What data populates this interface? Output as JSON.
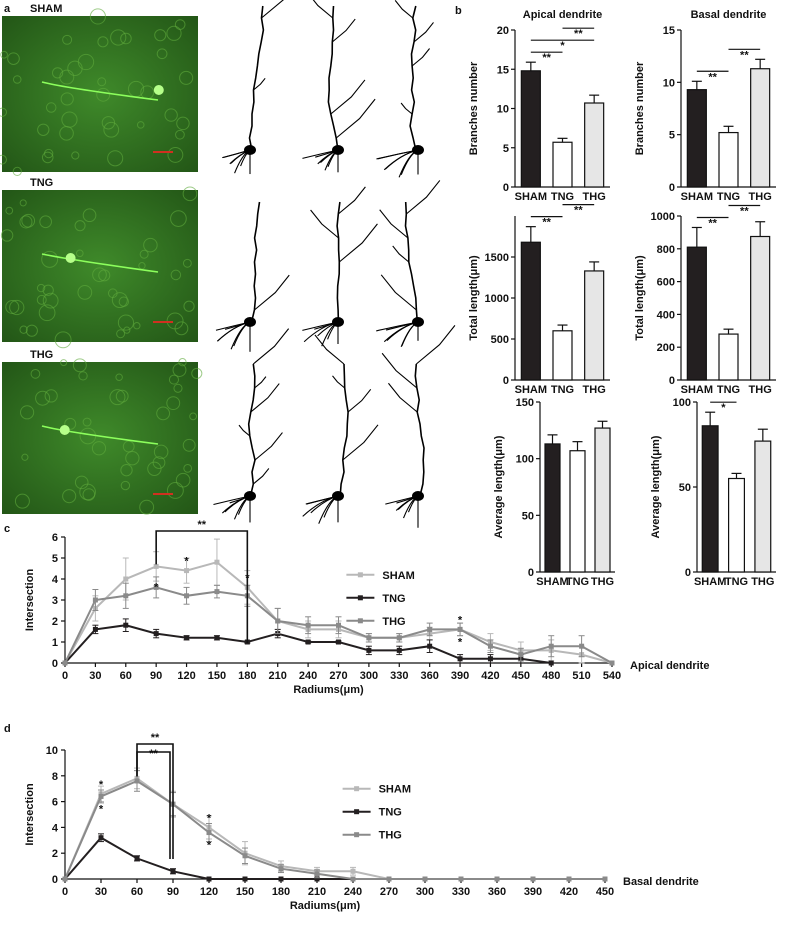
{
  "panels": [
    "a",
    "b",
    "c",
    "d"
  ],
  "images": [
    {
      "label": "SHAM"
    },
    {
      "label": "TNG"
    },
    {
      "label": "THG"
    }
  ],
  "chart_data": [
    {
      "type": "bar",
      "title": "Apical dendrite",
      "y_label": "Branches number",
      "categories": [
        "SHAM",
        "TNG",
        "THG"
      ],
      "values": [
        14.8,
        5.7,
        10.7
      ],
      "errors": [
        1.1,
        0.5,
        1.0
      ],
      "colors": [
        "#231f20",
        "#ffffff",
        "#e6e6e6"
      ],
      "ylim": [
        0,
        20
      ],
      "yticks": [
        0,
        5,
        10,
        15,
        20
      ],
      "annotations": [
        {
          "text": "**",
          "between": [
            "SHAM",
            "TNG"
          ]
        },
        {
          "text": "*",
          "between": [
            "SHAM",
            "THG"
          ]
        },
        {
          "text": "**",
          "between": [
            "TNG",
            "THG"
          ]
        }
      ]
    },
    {
      "type": "bar",
      "title": "Basal dendrite",
      "y_label": "Branches number",
      "categories": [
        "SHAM",
        "TNG",
        "THG"
      ],
      "values": [
        9.3,
        5.2,
        11.3
      ],
      "errors": [
        0.8,
        0.6,
        0.9
      ],
      "colors": [
        "#231f20",
        "#ffffff",
        "#e6e6e6"
      ],
      "ylim": [
        0,
        15
      ],
      "yticks": [
        0,
        5,
        10,
        15
      ],
      "annotations": [
        {
          "text": "**",
          "between": [
            "SHAM",
            "TNG"
          ]
        },
        {
          "text": "**",
          "between": [
            "TNG",
            "THG"
          ]
        }
      ]
    },
    {
      "type": "bar",
      "y_label": "Total length(μm)",
      "categories": [
        "SHAM",
        "TNG",
        "THG"
      ],
      "values": [
        1680,
        600,
        1330
      ],
      "errors": [
        190,
        70,
        110
      ],
      "colors": [
        "#231f20",
        "#ffffff",
        "#e6e6e6"
      ],
      "ylim": [
        0,
        2000
      ],
      "yticks": [
        0,
        500,
        1000,
        1500
      ],
      "annotations": [
        {
          "text": "**",
          "between": [
            "SHAM",
            "TNG"
          ]
        },
        {
          "text": "**",
          "between": [
            "TNG",
            "THG"
          ]
        }
      ]
    },
    {
      "type": "bar",
      "y_label": "Total length(μm)",
      "categories": [
        "SHAM",
        "TNG",
        "THG"
      ],
      "values": [
        810,
        280,
        875
      ],
      "errors": [
        120,
        30,
        90
      ],
      "colors": [
        "#231f20",
        "#ffffff",
        "#e6e6e6"
      ],
      "ylim": [
        0,
        1000
      ],
      "yticks": [
        0,
        200,
        400,
        600,
        800,
        1000
      ],
      "annotations": [
        {
          "text": "**",
          "between": [
            "SHAM",
            "TNG"
          ]
        },
        {
          "text": "**",
          "between": [
            "TNG",
            "THG"
          ]
        }
      ]
    },
    {
      "type": "bar",
      "y_label": "Average  length(μm)",
      "categories": [
        "SHAM",
        "TNG",
        "THG"
      ],
      "values": [
        113,
        107,
        127
      ],
      "errors": [
        8,
        8,
        6
      ],
      "colors": [
        "#231f20",
        "#ffffff",
        "#e6e6e6"
      ],
      "ylim": [
        0,
        150
      ],
      "yticks": [
        0,
        50,
        100,
        150
      ],
      "annotations": []
    },
    {
      "type": "bar",
      "y_label": "Average length(μm)",
      "categories": [
        "SHAM",
        "TNG",
        "THG"
      ],
      "values": [
        86,
        55,
        77
      ],
      "errors": [
        8,
        3,
        7
      ],
      "colors": [
        "#231f20",
        "#ffffff",
        "#e6e6e6"
      ],
      "ylim": [
        0,
        100
      ],
      "yticks": [
        0,
        50,
        100
      ],
      "annotations": [
        {
          "text": "*",
          "between": [
            "SHAM",
            "TNG"
          ]
        }
      ]
    },
    {
      "type": "line",
      "side_label": "Apical dendrite",
      "x_label": "Radiums(μm)",
      "y_label": "Intersection",
      "legend": "center",
      "x": [
        0,
        30,
        60,
        90,
        120,
        150,
        180,
        210,
        240,
        270,
        300,
        330,
        360,
        390,
        420,
        450,
        480,
        510,
        540
      ],
      "xlim": [
        0,
        540
      ],
      "xticks": [
        0,
        30,
        60,
        90,
        120,
        150,
        180,
        210,
        240,
        270,
        300,
        330,
        360,
        390,
        420,
        450,
        480,
        510,
        540
      ],
      "ylim": [
        0,
        6
      ],
      "yticks": [
        0,
        1,
        2,
        3,
        4,
        5,
        6
      ],
      "series": [
        {
          "name": "SHAM",
          "color": "#b8b8b8",
          "values": [
            0,
            2.6,
            4.0,
            4.6,
            4.4,
            4.8,
            3.6,
            2.0,
            1.6,
            1.6,
            1.2,
            1.2,
            1.4,
            1.6,
            1.0,
            0.6,
            0.6,
            0.4,
            0
          ],
          "errors": [
            0,
            0.6,
            1.0,
            0.7,
            0.6,
            1.1,
            0.8,
            0.6,
            0.4,
            0.4,
            0.2,
            0.2,
            0.3,
            0.3,
            0.4,
            0.4,
            0.5,
            0.4,
            0
          ]
        },
        {
          "name": "TNG",
          "color": "#231f20",
          "values": [
            0,
            1.6,
            1.8,
            1.4,
            1.2,
            1.2,
            1.0,
            1.4,
            1.0,
            1.0,
            0.6,
            0.6,
            0.8,
            0.2,
            0.2,
            0.2,
            0,
            null,
            null
          ],
          "errors": [
            0,
            0.2,
            0.3,
            0.2,
            0.1,
            0.1,
            0.05,
            0.2,
            0.05,
            0.05,
            0.2,
            0.2,
            0.3,
            0.2,
            0.2,
            0.2,
            0,
            null,
            null
          ]
        },
        {
          "name": "THG",
          "color": "#8a8a8a",
          "values": [
            0,
            3.0,
            3.2,
            3.6,
            3.2,
            3.4,
            3.2,
            2.0,
            1.8,
            1.8,
            1.2,
            1.2,
            1.6,
            1.6,
            0.8,
            0.4,
            0.8,
            0.8,
            0
          ],
          "errors": [
            0,
            0.5,
            0.6,
            0.5,
            0.4,
            0.3,
            0.5,
            0.6,
            0.4,
            0.4,
            0.2,
            0.2,
            0.3,
            0.3,
            0.3,
            0.3,
            0.5,
            0.5,
            0
          ]
        }
      ],
      "brackets": [
        {
          "text": "**",
          "from": 90,
          "to": 180
        }
      ],
      "stars": [
        {
          "text": "*",
          "x": 90
        },
        {
          "text": "*",
          "x": 120
        },
        {
          "text": "*",
          "x": 180
        },
        {
          "text": "*",
          "x": 390
        },
        {
          "text": "*",
          "x": 390
        }
      ]
    },
    {
      "type": "line",
      "side_label": "Basal dendrite",
      "x_label": "Radiums(μm)",
      "y_label": "Intersection",
      "legend": "center",
      "x": [
        0,
        30,
        60,
        90,
        120,
        150,
        180,
        210,
        240,
        270,
        300,
        330,
        360,
        390,
        420,
        450
      ],
      "xlim": [
        0,
        450
      ],
      "xticks": [
        0,
        30,
        60,
        90,
        120,
        150,
        180,
        210,
        240,
        270,
        300,
        330,
        360,
        390,
        420,
        450
      ],
      "ylim": [
        0,
        10
      ],
      "yticks": [
        0,
        2,
        4,
        6,
        8,
        10
      ],
      "series": [
        {
          "name": "SHAM",
          "color": "#b8b8b8",
          "values": [
            0,
            6.6,
            7.8,
            5.8,
            4.0,
            2.0,
            1.0,
            0.6,
            0.6,
            0,
            0,
            0,
            0,
            0,
            0,
            0
          ],
          "errors": [
            0,
            0.6,
            0.8,
            1.0,
            0.9,
            0.9,
            0.4,
            0.3,
            0.3,
            0,
            0,
            0,
            0,
            0,
            0,
            0
          ]
        },
        {
          "name": "TNG",
          "color": "#231f20",
          "values": [
            0,
            3.2,
            1.6,
            0.6,
            0,
            0,
            0,
            0,
            0,
            null,
            null,
            null,
            null,
            null,
            null,
            null
          ],
          "errors": [
            0,
            0.3,
            0.2,
            0.2,
            0,
            0,
            0,
            0,
            0,
            null,
            null,
            null,
            null,
            null,
            null,
            null
          ]
        },
        {
          "name": "THG",
          "color": "#8a8a8a",
          "values": [
            0,
            6.4,
            7.6,
            5.8,
            3.6,
            1.8,
            0.8,
            0.4,
            0,
            0,
            0,
            0,
            0,
            0,
            0,
            0
          ],
          "errors": [
            0,
            0.5,
            0.8,
            0.9,
            0.7,
            0.6,
            0.3,
            0.3,
            0,
            0,
            0,
            0,
            0,
            0,
            0,
            0
          ]
        }
      ],
      "brackets": [
        {
          "text": "**",
          "from": 60,
          "to": 90
        },
        {
          "text": "**",
          "from": 60,
          "to": 90
        }
      ],
      "stars": [
        {
          "text": "*",
          "x": 30
        },
        {
          "text": "*",
          "x": 30
        },
        {
          "text": "*",
          "x": 120
        },
        {
          "text": "*",
          "x": 120
        }
      ]
    }
  ]
}
